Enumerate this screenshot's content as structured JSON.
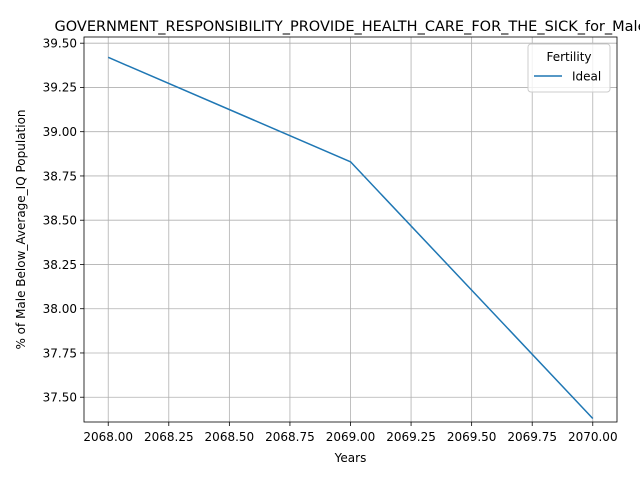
{
  "chart_data": {
    "type": "line",
    "title": "GOVERNMENT_RESPONSIBILITY_PROVIDE_HEALTH_CARE_FOR_THE_SICK_for_Male",
    "xlabel": "Years",
    "ylabel": "% of Male Below_Average_IQ Population",
    "xlim": [
      2067.9,
      2070.1
    ],
    "ylim": [
      37.36,
      39.535
    ],
    "xticks": [
      2068.0,
      2068.25,
      2068.5,
      2068.75,
      2069.0,
      2069.25,
      2069.5,
      2069.75,
      2070.0
    ],
    "xtick_labels": [
      "2068.00",
      "2068.25",
      "2068.50",
      "2068.75",
      "2069.00",
      "2069.25",
      "2069.50",
      "2069.75",
      "2070.00"
    ],
    "yticks": [
      37.5,
      37.75,
      38.0,
      38.25,
      38.5,
      38.75,
      39.0,
      39.25,
      39.5
    ],
    "ytick_labels": [
      "37.50",
      "37.75",
      "38.00",
      "38.25",
      "38.50",
      "38.75",
      "39.00",
      "39.25",
      "39.50"
    ],
    "grid": true,
    "legend": {
      "title": "Fertility",
      "placement": "top-right"
    },
    "series": [
      {
        "name": "Ideal",
        "color": "#1f77b4",
        "x": [
          2068,
          2069,
          2070
        ],
        "y": [
          39.42,
          38.83,
          37.38
        ]
      }
    ]
  }
}
